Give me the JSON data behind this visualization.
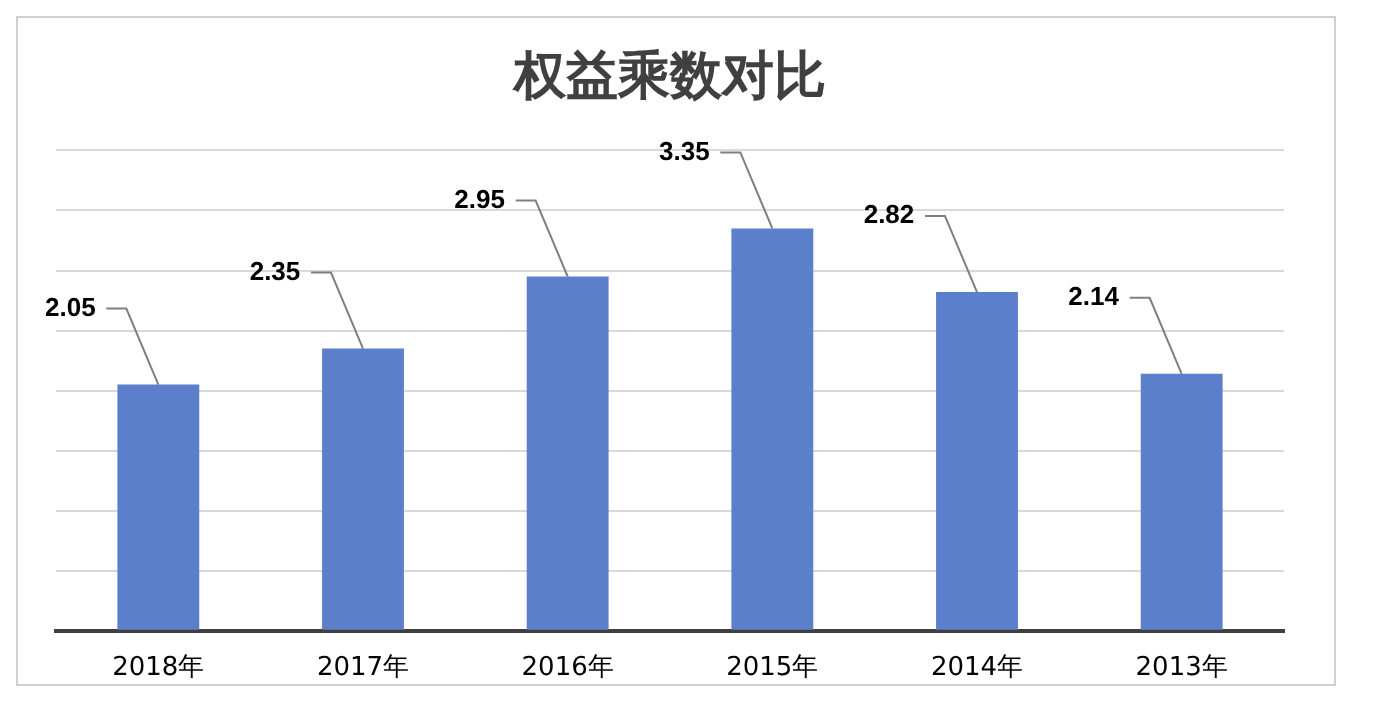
{
  "chart_data": {
    "type": "bar",
    "title": "权益乘数对比",
    "categories": [
      "2018年",
      "2017年",
      "2016年",
      "2015年",
      "2014年",
      "2013年"
    ],
    "values": [
      2.05,
      2.35,
      2.95,
      3.35,
      2.82,
      2.14
    ],
    "color": "#5b7fcb",
    "ylim": [
      0,
      4
    ],
    "yticks": [
      {
        "value": 0,
        "label": null
      },
      {
        "value": 0.5,
        "label": null
      },
      {
        "value": 1,
        "label": null
      },
      {
        "value": 1.5,
        "label": null
      },
      {
        "value": 2,
        "label": null
      },
      {
        "value": 2.5,
        "label": null
      },
      {
        "value": 3,
        "label": null
      },
      {
        "value": 3.5,
        "label": null
      },
      {
        "value": 4,
        "label": null
      }
    ],
    "tick_labels": "x",
    "grid": "y",
    "data_labels": true
  }
}
